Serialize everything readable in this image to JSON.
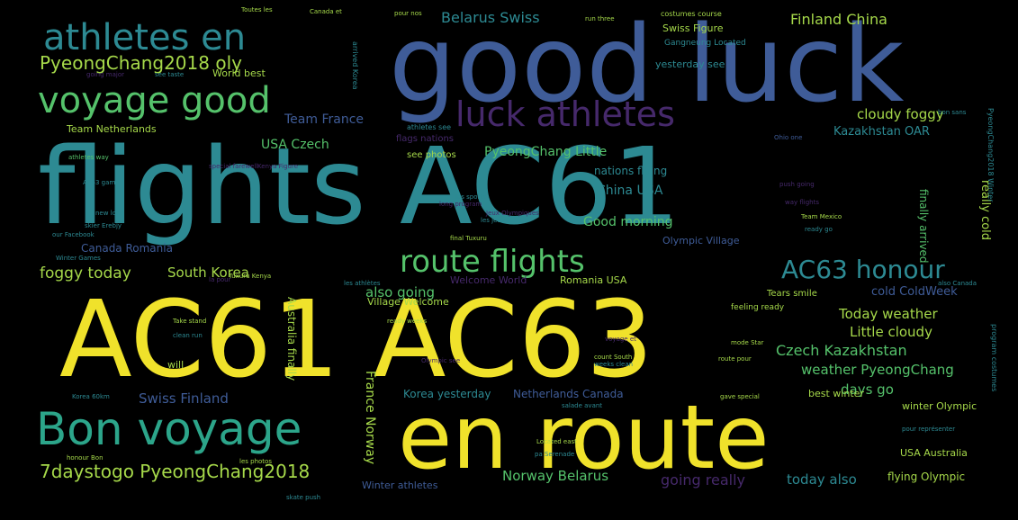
{
  "palette": {
    "background": "#000000",
    "yellow": "#f0e22b",
    "teal": "#2d8a93",
    "blue": "#3f5c98",
    "purple": "#46296b",
    "green": "#55c26b",
    "lime": "#a6d94a",
    "seagreen": "#2ca58a"
  },
  "words": {
    "good_luck": "good luck",
    "flights_ac61": "flights AC61",
    "ac61_ac63": "AC61 AC63",
    "en_route": "en route",
    "bon_voyage": "Bon voyage",
    "voyage_good": "voyage good",
    "athletes_en": "athletes en",
    "luck_athletes": "luck athletes",
    "route_flights": "route flights",
    "ac63_honour": "AC63 honour",
    "pyeongchang2018_oly": "PyeongChang2018 oly",
    "sevendaystogo": "7daystogo PyeongChang2018",
    "belarus_swiss": "Belarus Swiss",
    "finland_china": "Finland China",
    "cloudy_foggy": "cloudy foggy",
    "kazakhstan_oar": "Kazakhstan OAR",
    "team_france": "Team France",
    "usa_czech": "USA Czech",
    "pyeongchang_little": "PyeongChang Little",
    "china_usa": "China USA",
    "good_morning": "Good morning",
    "foggy_today": "foggy today",
    "south_korea": "South Korea",
    "also_going": "also going",
    "village_welcome": "Village Welcome",
    "today_weather": "Today weather",
    "little_cloudy": "Little cloudy",
    "czech_kazakhstan": "Czech Kazakhstan",
    "weather_pyeongchang": "weather PyeongChang",
    "swiss_finland": "Swiss Finland",
    "days_go": "days go",
    "norway_belarus": "Norway Belarus",
    "going_really": "going really",
    "today_also": "today also",
    "flying_olympic": "flying Olympic",
    "usa_australia": "USA Australia",
    "france_norway": "France Norway",
    "australia_finally": "Australia finally",
    "really_cold": "really cold",
    "finally_arrived": "finally arrived",
    "cold_coldweek": "cold ColdWeek",
    "nations_flying": "nations flying",
    "olympic_village": "Olympic Village",
    "yesterday_see": "yesterday see",
    "world_best": "World best",
    "team_netherlands": "Team Netherlands",
    "canada_romania": "Canada Romania",
    "netherlands_canada": "Netherlands Canada",
    "korea_yesterday": "Korea yesterday",
    "winter_athletes": "Winter athletes",
    "best_winter": "best winter",
    "winter_olympic": "winter Olympic",
    "romania_usa": "Romania USA",
    "welcome_world": "Welcome World",
    "flags_nations": "flags nations",
    "see_photos": "see photos",
    "will": "will",
    "swiss_figure": "Swiss Figure",
    "gangneung_located": "Gangneung Located",
    "feeling_ready": "feeling ready",
    "tears_smile": "Tears smile",
    "arrived_korea": "arrived Korea",
    "athletes_way": "athletes way",
    "costumes_course": "costumes course",
    "toutes_les": "Toutes les",
    "canada_et": "Canada et",
    "pour_nos": "pour nos",
    "run_three": "run three",
    "see_taste": "see taste",
    "going_major": "going major",
    "athletes_see": "athletes see",
    "special_farewell": "special farewell",
    "kenya_figure": "Kenya Figure",
    "ac63_game": "AC63 game",
    "new_long": "new long",
    "skier_erebjy": "skier Erebjy",
    "our_facebook": "our Facebook",
    "winter_games": "Winter Games",
    "tuxuru_kenya": "Tuxuru Kenya",
    "les_jeux": "les jeux",
    "les_sports": "les sports",
    "jeux_olympiques": "Jeux Olympiques",
    "take_stand": "Take stand",
    "clean_run": "clean run",
    "ready_weeks": "ready weeks",
    "mode_star": "mode Star",
    "voyage_et": "voyage et",
    "count_south": "count South",
    "weeks_clean": "weeks clean",
    "route_pour": "route pour",
    "gave_special": "gave special",
    "olympic_see": "Olympic see",
    "korea_60km": "Korea 60km",
    "salade_avant": "salade avant",
    "located_east": "Located east",
    "pa_serenade": "pa Serenade",
    "pour_represent": "pour représenter",
    "honour_bon": "honour Bon",
    "les_photos": "les photos",
    "skate_push": "skate push",
    "ohio_one": "Ohio one",
    "push_going": "push going",
    "way_flights": "way flights",
    "team_mexico": "Team Mexico",
    "ready_go": "ready go",
    "also_canada": "also Canada",
    "la_pour": "la pour",
    "les_athletes": "les athlètes",
    "bon_sans": "bon sans",
    "final_tuxuru": "final Tuxuru",
    "long_program": "long program",
    "pyeongchang2018_winter": "PyeongChang2018 Winter",
    "program_costumes": "program costumes"
  },
  "layout_words": [
    {
      "key": "good_luck",
      "color": "blue"
    },
    {
      "key": "flights_ac61",
      "color": "teal"
    },
    {
      "key": "ac61_ac63",
      "color": "yellow"
    },
    {
      "key": "en_route",
      "color": "yellow"
    },
    {
      "key": "bon_voyage",
      "color": "seagreen"
    },
    {
      "key": "voyage_good",
      "color": "green"
    },
    {
      "key": "athletes_en",
      "color": "teal"
    },
    {
      "key": "luck_athletes",
      "color": "purple"
    },
    {
      "key": "route_flights",
      "color": "green"
    },
    {
      "key": "ac63_honour",
      "color": "teal"
    },
    {
      "key": "pyeongchang2018_oly",
      "color": "lime"
    },
    {
      "key": "sevendaystogo",
      "color": "lime"
    },
    {
      "key": "belarus_swiss",
      "color": "teal"
    },
    {
      "key": "finland_china",
      "color": "lime"
    },
    {
      "key": "cloudy_foggy",
      "color": "lime"
    },
    {
      "key": "kazakhstan_oar",
      "color": "teal"
    },
    {
      "key": "team_france",
      "color": "blue"
    },
    {
      "key": "usa_czech",
      "color": "green"
    },
    {
      "key": "pyeongchang_little",
      "color": "green"
    },
    {
      "key": "china_usa",
      "color": "teal"
    },
    {
      "key": "good_morning",
      "color": "green"
    },
    {
      "key": "foggy_today",
      "color": "lime"
    },
    {
      "key": "south_korea",
      "color": "lime"
    },
    {
      "key": "also_going",
      "color": "green"
    },
    {
      "key": "village_welcome",
      "color": "lime"
    },
    {
      "key": "today_weather",
      "color": "lime"
    },
    {
      "key": "little_cloudy",
      "color": "lime"
    },
    {
      "key": "czech_kazakhstan",
      "color": "green"
    },
    {
      "key": "weather_pyeongchang",
      "color": "green"
    },
    {
      "key": "swiss_finland",
      "color": "blue"
    },
    {
      "key": "days_go",
      "color": "green"
    },
    {
      "key": "norway_belarus",
      "color": "green"
    },
    {
      "key": "going_really",
      "color": "purple"
    },
    {
      "key": "today_also",
      "color": "teal"
    },
    {
      "key": "flying_olympic",
      "color": "lime"
    },
    {
      "key": "usa_australia",
      "color": "lime"
    },
    {
      "key": "cold_coldweek",
      "color": "blue"
    },
    {
      "key": "nations_flying",
      "color": "teal"
    },
    {
      "key": "olympic_village",
      "color": "blue"
    },
    {
      "key": "yesterday_see",
      "color": "teal"
    },
    {
      "key": "world_best",
      "color": "lime"
    },
    {
      "key": "team_netherlands",
      "color": "lime"
    },
    {
      "key": "canada_romania",
      "color": "blue"
    },
    {
      "key": "netherlands_canada",
      "color": "blue"
    },
    {
      "key": "korea_yesterday",
      "color": "teal"
    },
    {
      "key": "winter_athletes",
      "color": "blue"
    },
    {
      "key": "best_winter",
      "color": "lime"
    },
    {
      "key": "winter_olympic",
      "color": "lime"
    },
    {
      "key": "romania_usa",
      "color": "lime"
    },
    {
      "key": "welcome_world",
      "color": "purple"
    },
    {
      "key": "flags_nations",
      "color": "purple"
    },
    {
      "key": "see_photos",
      "color": "lime"
    },
    {
      "key": "will",
      "color": "lime"
    },
    {
      "key": "swiss_figure",
      "color": "lime"
    },
    {
      "key": "gangneung_located",
      "color": "teal"
    },
    {
      "key": "feeling_ready",
      "color": "lime"
    },
    {
      "key": "tears_smile",
      "color": "lime"
    },
    {
      "key": "athletes_way",
      "color": "green"
    },
    {
      "key": "costumes_course",
      "color": "lime"
    },
    {
      "key": "toutes_les",
      "color": "lime"
    },
    {
      "key": "canada_et",
      "color": "lime"
    },
    {
      "key": "pour_nos",
      "color": "lime"
    },
    {
      "key": "run_three",
      "color": "lime"
    },
    {
      "key": "see_taste",
      "color": "teal"
    },
    {
      "key": "going_major",
      "color": "purple"
    },
    {
      "key": "athletes_see",
      "color": "teal"
    },
    {
      "key": "special_farewell",
      "color": "purple"
    },
    {
      "key": "kenya_figure",
      "color": "purple"
    },
    {
      "key": "ac63_game",
      "color": "teal"
    },
    {
      "key": "new_long",
      "color": "teal"
    },
    {
      "key": "skier_erebjy",
      "color": "teal"
    },
    {
      "key": "our_facebook",
      "color": "teal"
    },
    {
      "key": "winter_games",
      "color": "teal"
    },
    {
      "key": "tuxuru_kenya",
      "color": "lime"
    },
    {
      "key": "les_jeux",
      "color": "teal"
    },
    {
      "key": "les_sports",
      "color": "teal"
    },
    {
      "key": "jeux_olympiques",
      "color": "purple"
    },
    {
      "key": "take_stand",
      "color": "lime"
    },
    {
      "key": "clean_run",
      "color": "teal"
    },
    {
      "key": "ready_weeks",
      "color": "lime"
    },
    {
      "key": "mode_star",
      "color": "lime"
    },
    {
      "key": "voyage_et",
      "color": "purple"
    },
    {
      "key": "count_south",
      "color": "lime"
    },
    {
      "key": "weeks_clean",
      "color": "teal"
    },
    {
      "key": "route_pour",
      "color": "lime"
    },
    {
      "key": "gave_special",
      "color": "lime"
    },
    {
      "key": "olympic_see",
      "color": "purple"
    },
    {
      "key": "korea_60km",
      "color": "teal"
    },
    {
      "key": "salade_avant",
      "color": "teal"
    },
    {
      "key": "located_east",
      "color": "lime"
    },
    {
      "key": "pa_serenade",
      "color": "teal"
    },
    {
      "key": "pour_represent",
      "color": "teal"
    },
    {
      "key": "honour_bon",
      "color": "lime"
    },
    {
      "key": "les_photos",
      "color": "lime"
    },
    {
      "key": "skate_push",
      "color": "teal"
    },
    {
      "key": "ohio_one",
      "color": "blue"
    },
    {
      "key": "push_going",
      "color": "purple"
    },
    {
      "key": "way_flights",
      "color": "purple"
    },
    {
      "key": "team_mexico",
      "color": "lime"
    },
    {
      "key": "ready_go",
      "color": "teal"
    },
    {
      "key": "also_canada",
      "color": "teal"
    },
    {
      "key": "la_pour",
      "color": "purple"
    },
    {
      "key": "les_athletes",
      "color": "teal"
    },
    {
      "key": "bon_sans",
      "color": "teal"
    },
    {
      "key": "final_tuxuru",
      "color": "lime"
    },
    {
      "key": "long_program",
      "color": "purple"
    }
  ],
  "vertical_words": [
    {
      "key": "france_norway",
      "color": "lime"
    },
    {
      "key": "australia_finally",
      "color": "lime"
    },
    {
      "key": "really_cold",
      "color": "lime"
    },
    {
      "key": "finally_arrived",
      "color": "green"
    },
    {
      "key": "arrived_korea",
      "color": "teal"
    },
    {
      "key": "pyeongchang2018_winter",
      "color": "teal"
    },
    {
      "key": "program_costumes",
      "color": "teal"
    }
  ]
}
